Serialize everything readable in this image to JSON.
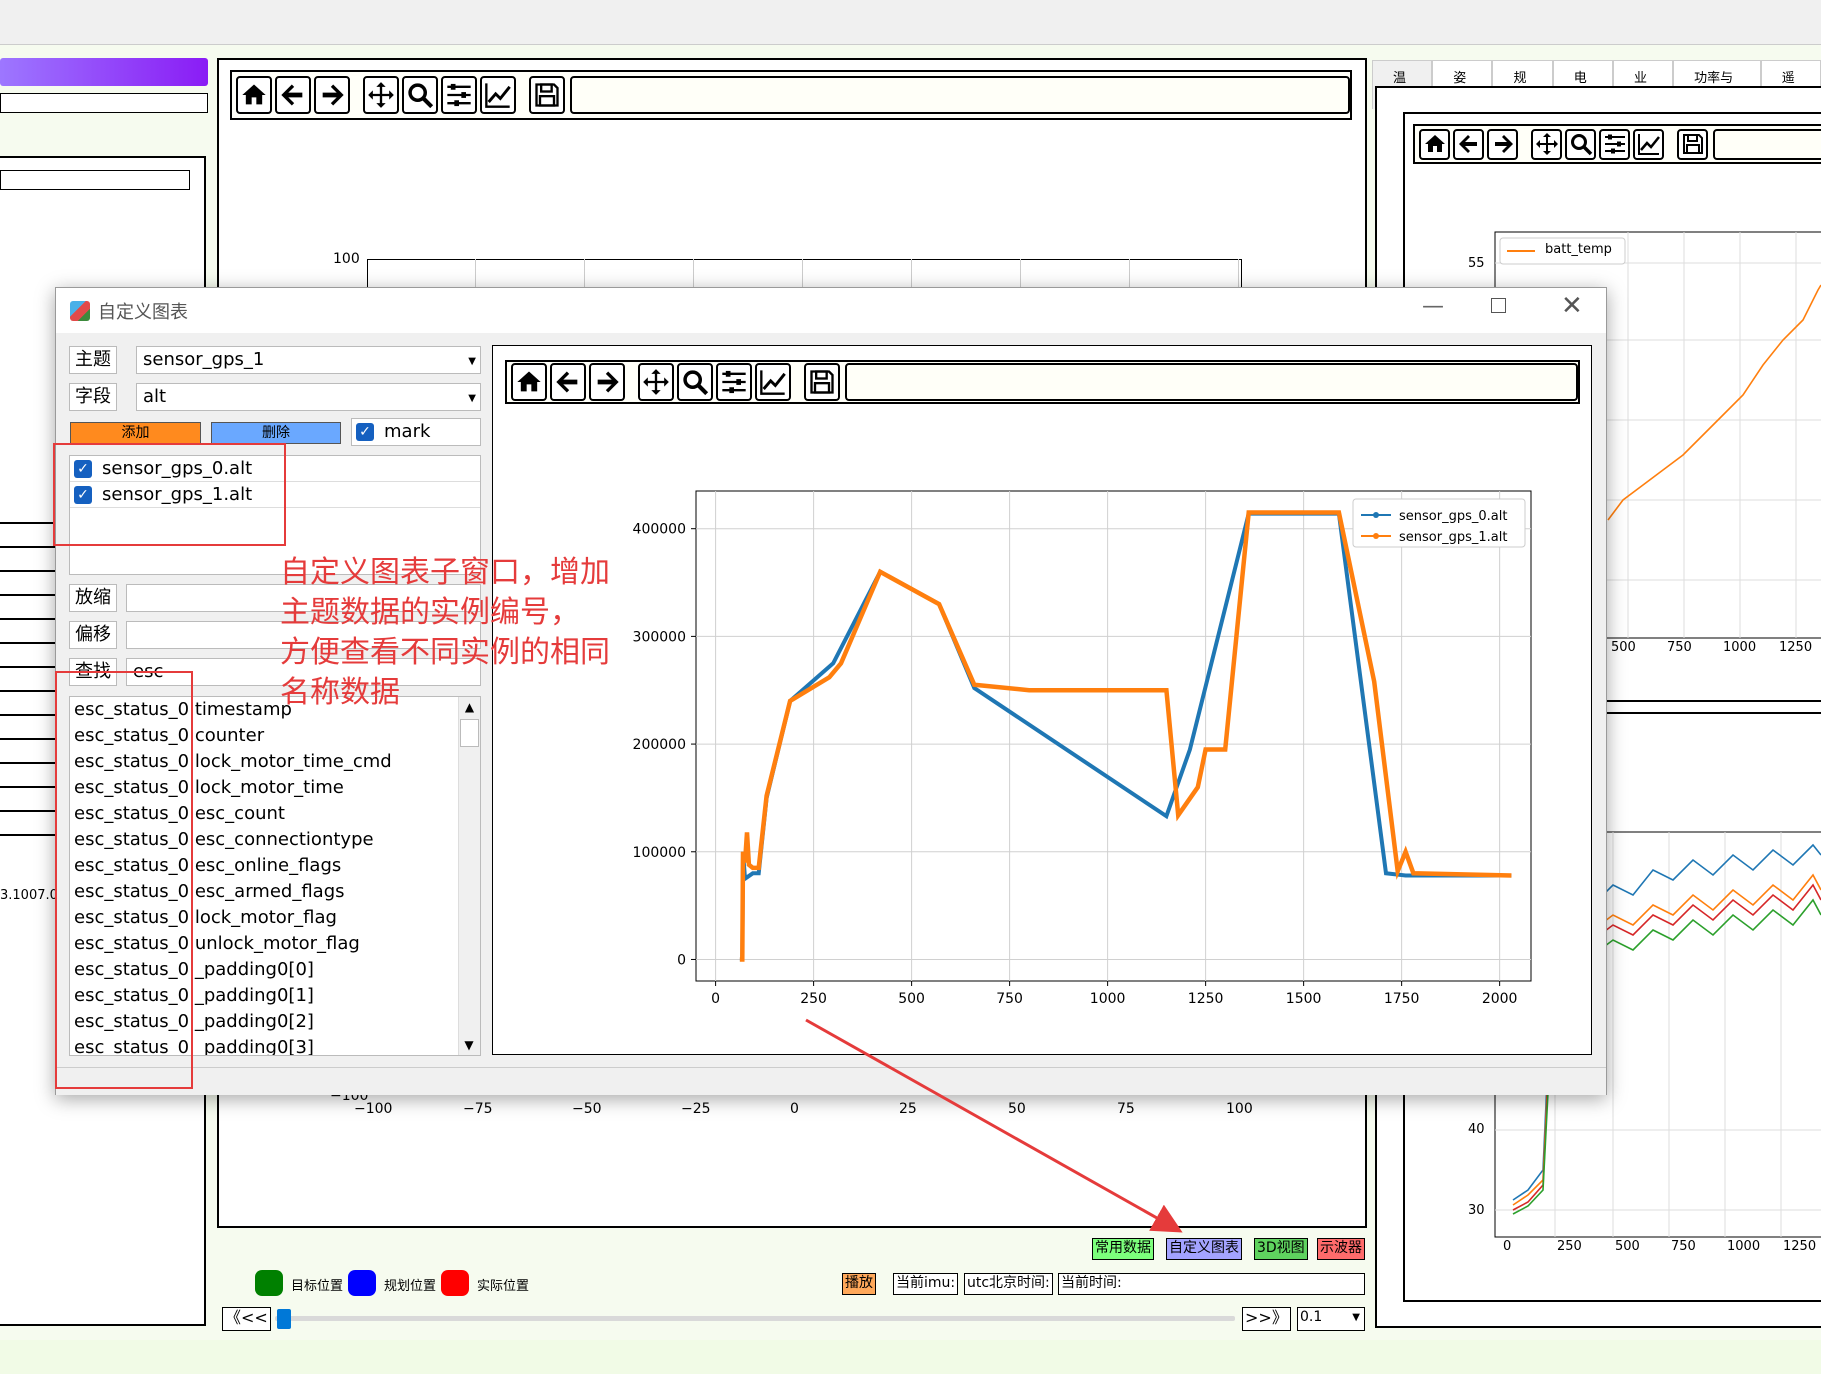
{
  "toolbar_icons": [
    "home-icon",
    "back-icon",
    "forward-icon",
    "pan-icon",
    "zoom-icon",
    "configure-icon",
    "edit-axis-icon",
    "save-icon"
  ],
  "right_tabs": [
    "温度",
    "姿态",
    "规划",
    "电机",
    "业务",
    "功率与电流",
    "遥控"
  ],
  "bg_left_text": "3.1007.0",
  "bg_main_chart": {
    "y_top": "100",
    "y_bottom": "−100",
    "x_ticks": [
      "−100",
      "−75",
      "−50",
      "−25",
      "0",
      "25",
      "50",
      "75",
      "100"
    ]
  },
  "bg_right_top_chart": {
    "legend": "batt_temp",
    "y_tick": "55",
    "x_ticks": [
      "500",
      "750",
      "1000",
      "1250"
    ]
  },
  "bg_right_bottom_chart": {
    "y_ticks": [
      "40",
      "30"
    ],
    "x_ticks": [
      "0",
      "250",
      "500",
      "750",
      "1000",
      "1250"
    ]
  },
  "dialog": {
    "title": "自定义图表",
    "topic_label": "主题",
    "topic_value": "sensor_gps_1",
    "field_label": "字段",
    "field_value": "alt",
    "add_button": "添加",
    "delete_button": "删除",
    "mark_label": "mark",
    "selected": [
      "sensor_gps_0.alt",
      "sensor_gps_1.alt"
    ],
    "scale_label": "放缩",
    "offset_label": "偏移",
    "search_label": "查找",
    "search_value": "esc",
    "fields": [
      "esc_status_0.timestamp",
      "esc_status_0.counter",
      "esc_status_0.lock_motor_time_cmd",
      "esc_status_0.lock_motor_time",
      "esc_status_0.esc_count",
      "esc_status_0.esc_connectiontype",
      "esc_status_0.esc_online_flags",
      "esc_status_0.esc_armed_flags",
      "esc_status_0.lock_motor_flag",
      "esc_status_0.unlock_motor_flag",
      "esc_status_0._padding0[0]",
      "esc_status_0._padding0[1]",
      "esc_status_0._padding0[2]",
      "esc_status_0._padding0[3]"
    ]
  },
  "annotation": "自定义图表子窗口，增加主题数据的实例编号，方便查看不同实例的相同名称数据",
  "annotation_lines": [
    "自定义图表子窗口，增加",
    "主题数据的实例编号，",
    "方便查看不同实例的相同",
    "名称数据"
  ],
  "chart_data": {
    "type": "line",
    "xlim": [
      -50,
      2080
    ],
    "ylim": [
      -20000,
      435000
    ],
    "x_ticks": [
      0,
      250,
      500,
      750,
      1000,
      1250,
      1500,
      1750,
      2000
    ],
    "y_ticks": [
      0,
      100000,
      200000,
      300000,
      400000
    ],
    "grid": true,
    "legend_position": "top-right",
    "series": [
      {
        "name": "sensor_gps_0.alt",
        "color": "#1f77b4",
        "points": [
          [
            62,
            0
          ],
          [
            68,
            0
          ],
          [
            70,
            100000
          ],
          [
            75,
            75000
          ],
          [
            95,
            80000
          ],
          [
            110,
            80000
          ],
          [
            130,
            150000
          ],
          [
            190,
            240000
          ],
          [
            300,
            275000
          ],
          [
            420,
            360000
          ],
          [
            570,
            330000
          ],
          [
            660,
            252000
          ],
          [
            1150,
            133000
          ],
          [
            1210,
            195000
          ],
          [
            1360,
            414000
          ],
          [
            1590,
            414000
          ],
          [
            1710,
            80000
          ],
          [
            1760,
            78000
          ],
          [
            2030,
            78000
          ]
        ]
      },
      {
        "name": "sensor_gps_1.alt",
        "color": "#ff7f0e",
        "points": [
          [
            62,
            0
          ],
          [
            68,
            0
          ],
          [
            70,
            100000
          ],
          [
            75,
            90000
          ],
          [
            80,
            118000
          ],
          [
            85,
            88000
          ],
          [
            95,
            85000
          ],
          [
            110,
            85000
          ],
          [
            130,
            152000
          ],
          [
            190,
            240000
          ],
          [
            290,
            262000
          ],
          [
            320,
            275000
          ],
          [
            420,
            360000
          ],
          [
            570,
            330000
          ],
          [
            660,
            255000
          ],
          [
            800,
            250000
          ],
          [
            1150,
            250000
          ],
          [
            1180,
            134000
          ],
          [
            1230,
            160000
          ],
          [
            1250,
            195000
          ],
          [
            1300,
            195000
          ],
          [
            1360,
            415000
          ],
          [
            1590,
            415000
          ],
          [
            1680,
            258000
          ],
          [
            1740,
            82000
          ],
          [
            1760,
            100000
          ],
          [
            1780,
            80000
          ],
          [
            2030,
            78000
          ]
        ]
      }
    ]
  },
  "bottom": {
    "legend": [
      {
        "label": "目标位置",
        "color": "#008000"
      },
      {
        "label": "规划位置",
        "color": "#0000ff"
      },
      {
        "label": "实际位置",
        "color": "#ff0000"
      }
    ],
    "buttons": [
      {
        "label": "常用数据",
        "color": "#7cff7c"
      },
      {
        "label": "自定义图表",
        "color": "#a3a3ff"
      },
      {
        "label": "3D视图",
        "color": "#5fd35f"
      },
      {
        "label": "示波器",
        "color": "#ff6b6b"
      }
    ],
    "play_label": "播放",
    "imu_label": "当前imu:",
    "utc_label": "utc北京时间:",
    "current_time_label": "当前时间:",
    "rewind_label": "《<<",
    "forward_label": ">>》",
    "speed_value": "0.1"
  }
}
